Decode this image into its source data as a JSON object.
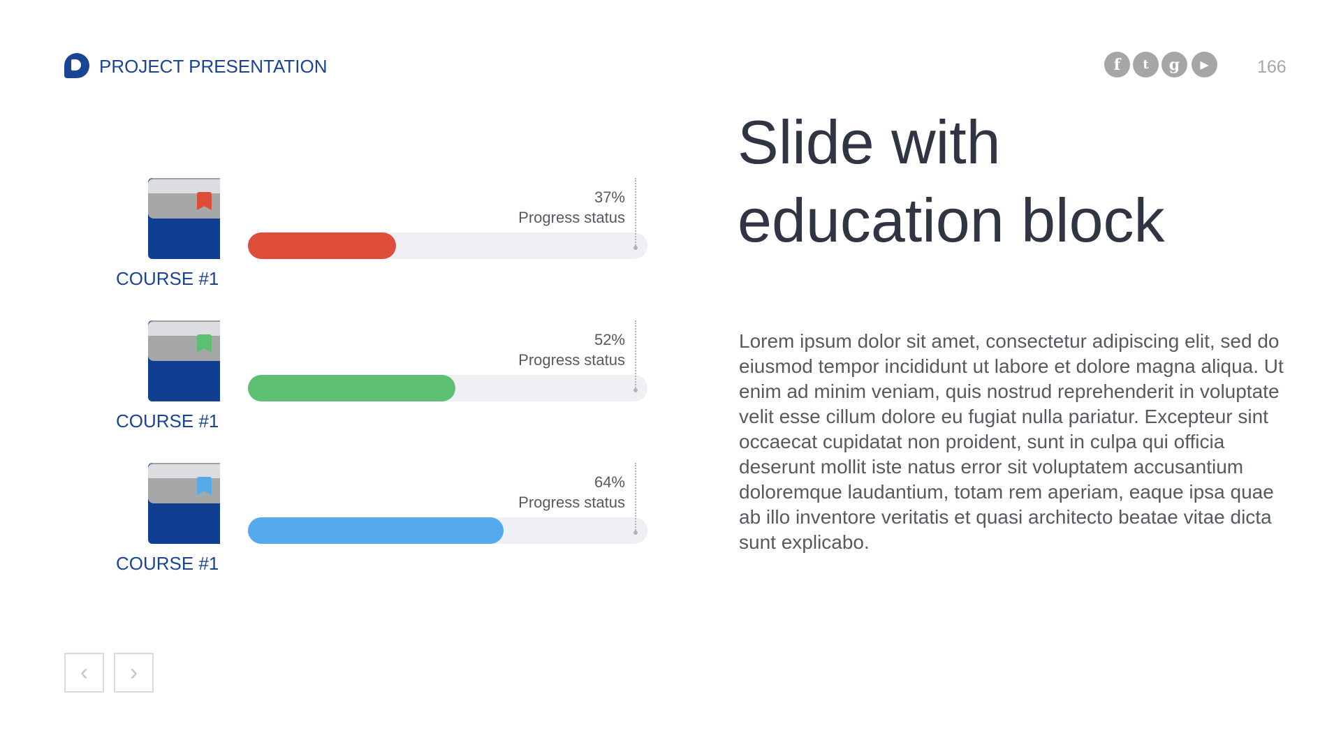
{
  "header": {
    "brand": "PROJECT PRESENTATION",
    "page_number": "166",
    "social": [
      "facebook-icon",
      "twitter-icon",
      "google-plus-icon",
      "youtube-icon"
    ]
  },
  "title": [
    "Slide with",
    "education block"
  ],
  "body": "Lorem ipsum dolor sit amet, consectetur adipiscing elit, sed do eiusmod tempor incididunt ut labore et dolore magna aliqua. Ut enim ad minim veniam, quis nostrud reprehenderit in voluptate velit esse cillum dolore eu fugiat nulla pariatur. Excepteur sint occaecat cupidatat non proident, sunt in culpa qui officia deserunt mollit iste natus error sit voluptatem accusantium doloremque laudantium, totam rem aperiam, eaque ipsa quae ab illo inventore veritatis et quasi architecto beatae vitae dicta sunt explicabo.",
  "courses": [
    {
      "label": "COURSE #1",
      "percent_label": "37%",
      "progress": 37,
      "status": "Progress status",
      "color": "#de4c3a"
    },
    {
      "label": "COURSE #1",
      "percent_label": "52%",
      "progress": 52,
      "status": "Progress status",
      "color": "#5cbf72"
    },
    {
      "label": "COURSE #1",
      "percent_label": "64%",
      "progress": 64,
      "status": "Progress status",
      "color": "#55aaec"
    }
  ],
  "nav": {
    "prev": "‹",
    "next": "›"
  }
}
